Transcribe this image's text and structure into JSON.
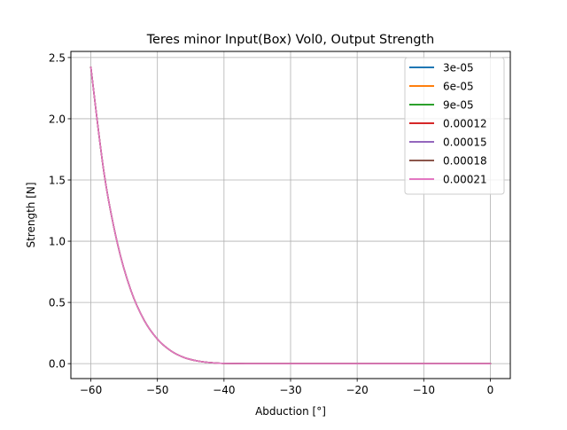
{
  "chart_data": {
    "type": "line",
    "title": "Teres minor Input(Box) Vol0, Output Strength",
    "xlabel": "Abduction [°]",
    "ylabel": "Strength [N]",
    "xlim": [
      -63,
      3
    ],
    "ylim": [
      -0.122,
      2.55
    ],
    "grid": true,
    "legend_position": "top-right",
    "xticks": [
      -60,
      -50,
      -40,
      -30,
      -20,
      -10,
      0
    ],
    "xtick_labels": [
      "−60",
      "−50",
      "−40",
      "−30",
      "−20",
      "−10",
      "0"
    ],
    "yticks": [
      0.0,
      0.5,
      1.0,
      1.5,
      2.0,
      2.5
    ],
    "ytick_labels": [
      "0.0",
      "0.5",
      "1.0",
      "1.5",
      "2.0",
      "2.5"
    ],
    "x": [
      -60,
      -58,
      -56,
      -54,
      -52,
      -50,
      -48,
      -46,
      -44,
      -42,
      -40,
      -35,
      -30,
      -20,
      -10,
      0
    ],
    "series": [
      {
        "name": "3e-05",
        "color": "#1f77b4",
        "values": [
          2.42,
          1.55,
          0.98,
          0.6,
          0.355,
          0.2,
          0.105,
          0.05,
          0.022,
          0.008,
          0.002,
          0.0,
          0.0,
          0.0,
          0.0,
          0.0
        ]
      },
      {
        "name": "6e-05",
        "color": "#ff7f0e",
        "values": [
          2.42,
          1.55,
          0.98,
          0.6,
          0.355,
          0.2,
          0.105,
          0.05,
          0.022,
          0.008,
          0.002,
          0.0,
          0.0,
          0.0,
          0.0,
          0.0
        ]
      },
      {
        "name": "9e-05",
        "color": "#2ca02c",
        "values": [
          2.42,
          1.55,
          0.98,
          0.6,
          0.355,
          0.2,
          0.105,
          0.05,
          0.022,
          0.008,
          0.002,
          0.0,
          0.0,
          0.0,
          0.0,
          0.0
        ]
      },
      {
        "name": "0.00012",
        "color": "#d62728",
        "values": [
          2.42,
          1.55,
          0.98,
          0.6,
          0.355,
          0.2,
          0.105,
          0.05,
          0.022,
          0.008,
          0.002,
          0.0,
          0.0,
          0.0,
          0.0,
          0.0
        ]
      },
      {
        "name": "0.00015",
        "color": "#9467bd",
        "values": [
          2.42,
          1.55,
          0.98,
          0.6,
          0.355,
          0.2,
          0.105,
          0.05,
          0.022,
          0.008,
          0.002,
          0.0,
          0.0,
          0.0,
          0.0,
          0.0
        ]
      },
      {
        "name": "0.00018",
        "color": "#8c564b",
        "values": [
          2.42,
          1.55,
          0.98,
          0.6,
          0.355,
          0.2,
          0.105,
          0.05,
          0.022,
          0.008,
          0.002,
          0.0,
          0.0,
          0.0,
          0.0,
          0.0
        ]
      },
      {
        "name": "0.00021",
        "color": "#e377c2",
        "values": [
          2.42,
          1.55,
          0.98,
          0.6,
          0.355,
          0.2,
          0.105,
          0.05,
          0.022,
          0.008,
          0.002,
          0.0,
          0.0,
          0.0,
          0.0,
          0.0
        ]
      }
    ]
  }
}
